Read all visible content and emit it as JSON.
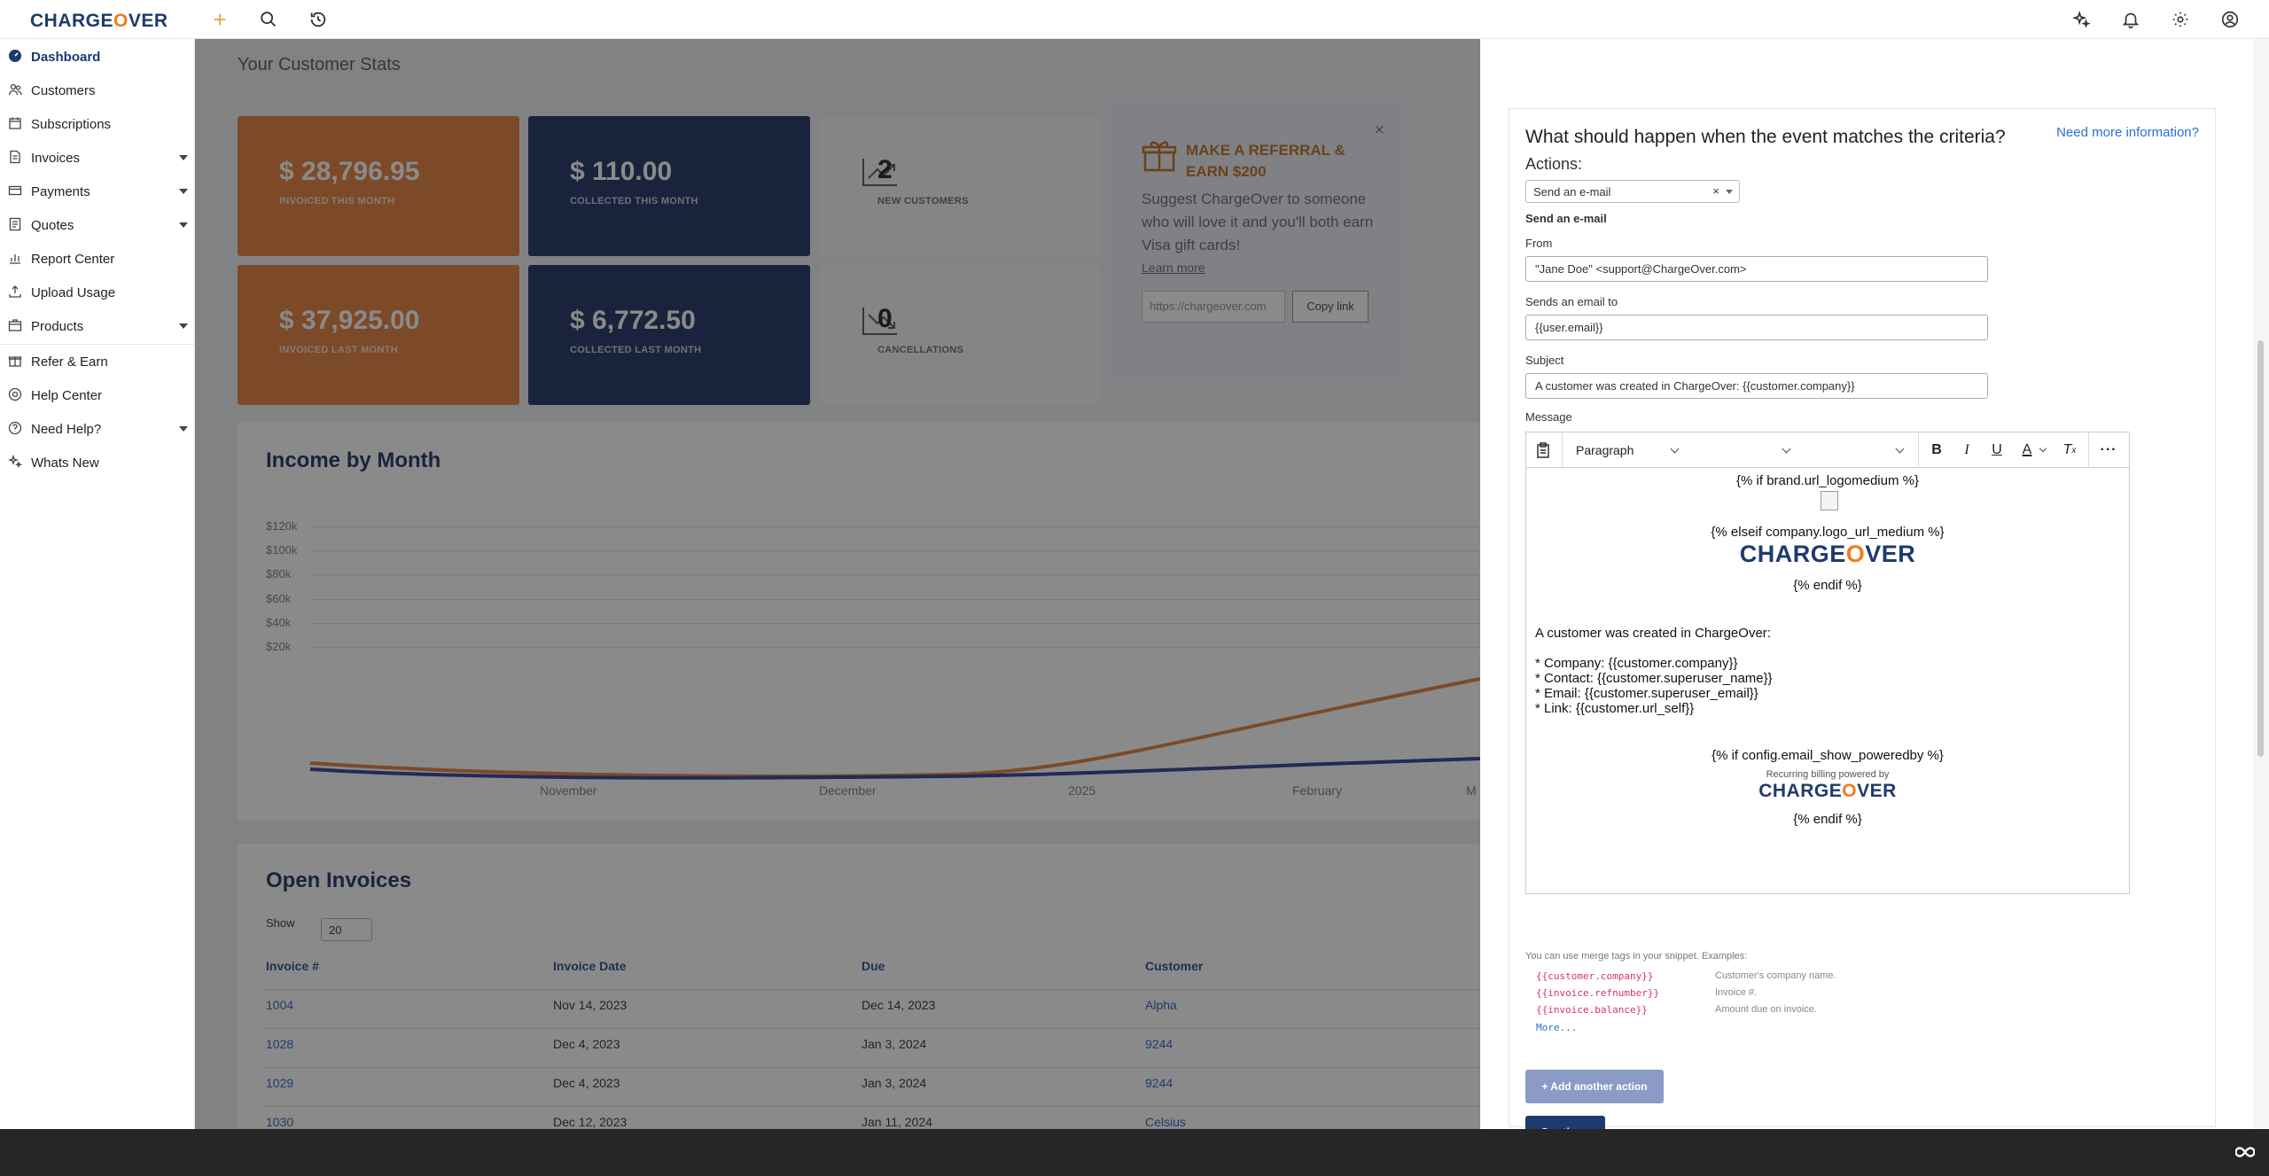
{
  "app": {
    "logo": "CHARGEOVER",
    "logo_part1": "CHARGE",
    "logo_part2": "O",
    "logo_part3": "VER"
  },
  "topbar": {
    "icons": [
      "plus-icon",
      "search-icon",
      "history-icon",
      "sparkle-icon",
      "bell-icon",
      "gear-icon",
      "user-icon"
    ]
  },
  "sidebar": {
    "items": [
      {
        "label": "Dashboard",
        "icon": "dashboard-icon",
        "active": true
      },
      {
        "label": "Customers",
        "icon": "users-icon"
      },
      {
        "label": "Subscriptions",
        "icon": "calendar-icon"
      },
      {
        "label": "Invoices",
        "icon": "invoice-icon",
        "expandable": true
      },
      {
        "label": "Payments",
        "icon": "payment-icon",
        "expandable": true
      },
      {
        "label": "Quotes",
        "icon": "quote-icon",
        "expandable": true
      },
      {
        "label": "Report Center",
        "icon": "report-icon"
      },
      {
        "label": "Upload Usage",
        "icon": "upload-icon"
      },
      {
        "label": "Products",
        "icon": "products-icon",
        "expandable": true
      },
      {
        "label": "Refer & Earn",
        "icon": "gift-icon"
      },
      {
        "label": "Help Center",
        "icon": "help-icon"
      },
      {
        "label": "Need Help?",
        "icon": "question-icon",
        "expandable": true
      },
      {
        "label": "Whats New",
        "icon": "sparkle-icon"
      }
    ]
  },
  "dashboard": {
    "title": "Your Customer Stats",
    "stats": [
      {
        "value": "$ 28,796.95",
        "label": "INVOICED THIS MONTH"
      },
      {
        "value": "$ 110.00",
        "label": "COLLECTED THIS MONTH"
      },
      {
        "value": "2",
        "label": "NEW CUSTOMERS"
      },
      {
        "value": "$ 37,925.00",
        "label": "INVOICED LAST MONTH"
      },
      {
        "value": "$ 6,772.50",
        "label": "COLLECTED LAST MONTH"
      },
      {
        "value": "0",
        "label": "CANCELLATIONS"
      }
    ],
    "referral": {
      "heading": "MAKE A REFERRAL & EARN $200",
      "text": "Suggest ChargeOver to someone who will love it and you'll both earn Visa gift cards!",
      "learn_more": "Learn more",
      "link_value": "https://chargeover.com",
      "copy_button": "Copy link"
    },
    "income_chart": {
      "title": "Income by Month",
      "y_ticks": [
        "$120k",
        "$100k",
        "$80k",
        "$60k",
        "$40k",
        "$20k"
      ],
      "x_ticks": [
        "November",
        "December",
        "2025",
        "February",
        "M"
      ]
    },
    "open_invoices": {
      "title": "Open Invoices",
      "show_label": "Show",
      "show_value": "20",
      "columns": [
        "Invoice #",
        "Invoice Date",
        "Due",
        "Customer"
      ],
      "rows": [
        [
          "1004",
          "Nov 14, 2023",
          "Dec 14, 2023",
          "Alpha"
        ],
        [
          "1028",
          "Dec 4, 2023",
          "Jan 3, 2024",
          "9244"
        ],
        [
          "1029",
          "Dec 4, 2023",
          "Jan 3, 2024",
          "9244"
        ],
        [
          "1030",
          "Dec 12, 2023",
          "Jan 11, 2024",
          "Celsius"
        ]
      ]
    }
  },
  "panel": {
    "question": "What should happen when the event matches the criteria?",
    "more_info": "Need more information?",
    "actions_label": "Actions:",
    "action_select": "Send an e-mail",
    "section_title": "Send an e-mail",
    "from_label": "From",
    "from_value": "\"Jane Doe\" <support@ChargeOver.com>",
    "to_label": "Sends an email to",
    "to_value": "{{user.email}}",
    "subject_label": "Subject",
    "subject_value": "A customer was created in ChargeOver: {{customer.company}}",
    "message_label": "Message",
    "editor": {
      "format": "Paragraph",
      "content": {
        "if_logo": "{% if brand.url_logomedium %}",
        "elseif_logo": "{% elseif company.logo_url_medium %}",
        "endif1": "{% endif %}",
        "intro": "A customer was created in ChargeOver:",
        "line1": "* Company: {{customer.company}}",
        "line2": "* Contact: {{customer.superuser_name}}",
        "line3": "* Email: {{customer.superuser_email}}",
        "line4": "* Link: {{customer.url_self}}",
        "if_powered": "{% if config.email_show_poweredby %}",
        "powered_text": "Recurring billing powered by",
        "endif2": "{% endif %}"
      }
    },
    "hint": "You can use merge tags in your snippet. Examples:",
    "merge_tags": [
      {
        "tag": "{{customer.company}}",
        "desc": "Customer's company name."
      },
      {
        "tag": "{{invoice.refnumber}}",
        "desc": "Invoice #."
      },
      {
        "tag": "{{invoice.balance}}",
        "desc": "Amount due on invoice."
      }
    ],
    "more_link": "More...",
    "add_action": "+ Add another action",
    "continue": "Continue"
  }
}
